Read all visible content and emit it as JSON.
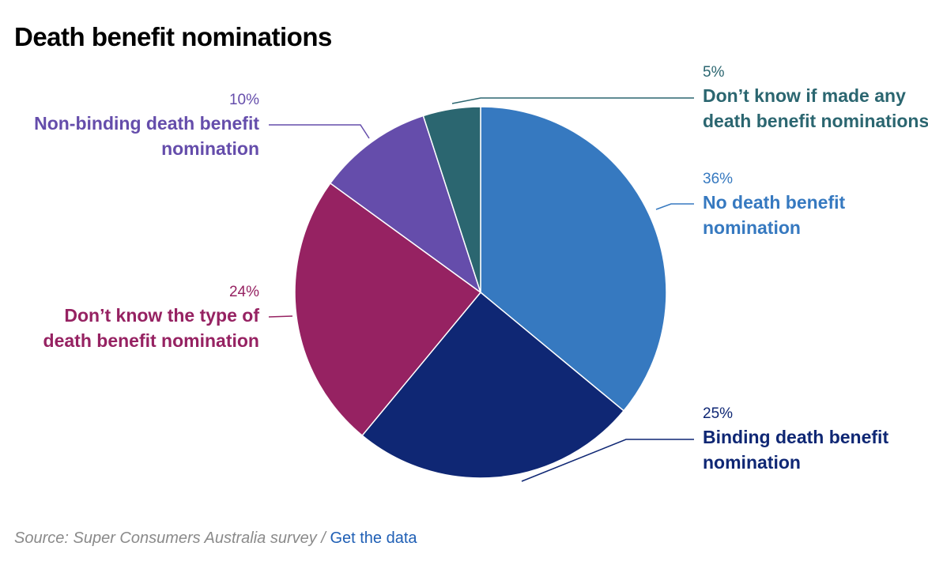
{
  "chart_data": {
    "type": "pie",
    "title": "Death benefit nominations",
    "slices": [
      {
        "label": "No death benefit nomination",
        "label_lines": [
          "No death benefit",
          "nomination"
        ],
        "value": 36,
        "value_text": "36%",
        "color": "#3679C0"
      },
      {
        "label": "Binding death benefit nomination",
        "label_lines": [
          "Binding death benefit",
          "nomination"
        ],
        "value": 25,
        "value_text": "25%",
        "color": "#0F2774"
      },
      {
        "label": "Don’t know the type of death benefit nomination",
        "label_lines": [
          "Don’t know the type of",
          "death benefit nomination"
        ],
        "value": 24,
        "value_text": "24%",
        "color": "#962262"
      },
      {
        "label": "Non-binding death benefit nomination",
        "label_lines": [
          "Non-binding death benefit",
          "nomination"
        ],
        "value": 10,
        "value_text": "10%",
        "color": "#654DAB"
      },
      {
        "label": "Don’t know if made any death benefit nominations",
        "label_lines": [
          "Don’t know if made any",
          "death benefit nominations"
        ],
        "value": 5,
        "value_text": "5%",
        "color": "#2B6670"
      }
    ],
    "start": "12 o'clock",
    "direction": "clockwise",
    "legend": "none"
  },
  "footer": {
    "source_text": "Source: Super Consumers Australia survey /",
    "link_text": "Get the data"
  }
}
